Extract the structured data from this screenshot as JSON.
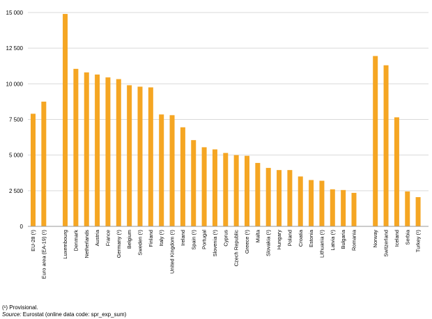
{
  "chart_data": {
    "type": "bar",
    "title": "",
    "xlabel": "",
    "ylabel": "",
    "ylim": [
      0,
      15000
    ],
    "yticks": [
      0,
      2500,
      5000,
      7500,
      10000,
      12500,
      15000
    ],
    "ytick_labels": [
      "0",
      "2 500",
      "5 000",
      "7 500",
      "10 000",
      "12 500",
      "15 000"
    ],
    "grid": true,
    "bar_color": "#f5a623",
    "groups": [
      {
        "categories": [
          "EU-28 (¹)",
          "Euro area (EA-19) (¹)"
        ],
        "values": [
          7900,
          8750
        ]
      },
      {
        "categories": [
          "Luxembourg",
          "Denmark",
          "Netherlands",
          "Austria",
          "France",
          "Germany (¹)",
          "Belgium",
          "Sweden (¹)",
          "Finland",
          "Italy (¹)",
          "United Kingdom (¹)",
          "Ireland",
          "Spain (¹)",
          "Portugal",
          "Slovenia (¹)",
          "Cyprus",
          "Czech Republic",
          "Greece (¹)",
          "Malta",
          "Slovakia (¹)",
          "Hungary",
          "Poland",
          "Croatia",
          "Estonia",
          "Lithuania (¹)",
          "Latvia (¹)",
          "Bulgaria",
          "Romania"
        ],
        "values": [
          14900,
          11050,
          10800,
          10650,
          10450,
          10330,
          9900,
          9800,
          9750,
          7850,
          7800,
          6950,
          6050,
          5550,
          5400,
          5150,
          5000,
          4950,
          4450,
          4100,
          3950,
          3950,
          3500,
          3250,
          3200,
          2600,
          2550,
          2350
        ]
      },
      {
        "categories": [
          "Norway",
          "Switzerland",
          "Iceland",
          "Serbia",
          "Turkey (¹)"
        ],
        "values": [
          11950,
          11300,
          7650,
          2450,
          2050
        ]
      }
    ]
  },
  "footnotes": {
    "provisional": "(¹) Provisional.",
    "source_label": "Source:",
    "source_text": " Eurostat (online data code: spr_exp_sum)"
  }
}
